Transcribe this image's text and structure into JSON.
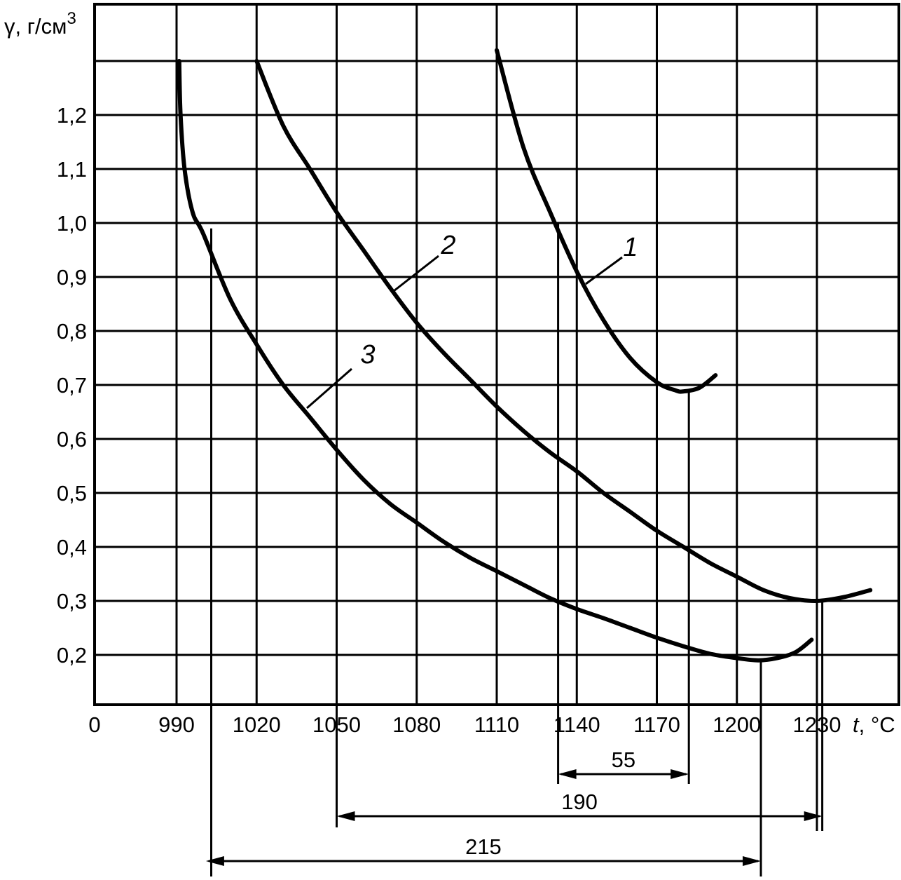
{
  "chart_data": {
    "type": "line",
    "ylabel": "γ, г/см",
    "ylabel_sup": "3",
    "xlabel_var": "t",
    "xlabel_unit": ", °C",
    "origin_label": "0",
    "x_ticks": [
      990,
      1020,
      1050,
      1080,
      1110,
      1140,
      1170,
      1200,
      1230
    ],
    "y_ticks": [
      "1,2",
      "1,1",
      "1,0",
      "0,9",
      "0,8",
      "0,7",
      "0,6",
      "0,5",
      "0,4",
      "0,3",
      "0,2"
    ],
    "xlim": [
      960,
      1250
    ],
    "ylim": [
      0.1,
      1.3
    ],
    "grid": true,
    "series": [
      {
        "name": "1",
        "values": [
          [
            1110,
            1.32
          ],
          [
            1120,
            1.14
          ],
          [
            1130,
            1.02
          ],
          [
            1140,
            0.91
          ],
          [
            1150,
            0.82
          ],
          [
            1160,
            0.75
          ],
          [
            1170,
            0.705
          ],
          [
            1177,
            0.69
          ],
          [
            1180,
            0.688
          ],
          [
            1186,
            0.695
          ],
          [
            1192,
            0.718
          ]
        ]
      },
      {
        "name": "2",
        "values": [
          [
            1020,
            1.3
          ],
          [
            1030,
            1.18
          ],
          [
            1040,
            1.1
          ],
          [
            1050,
            1.02
          ],
          [
            1060,
            0.95
          ],
          [
            1070,
            0.88
          ],
          [
            1080,
            0.815
          ],
          [
            1090,
            0.76
          ],
          [
            1100,
            0.71
          ],
          [
            1110,
            0.66
          ],
          [
            1120,
            0.615
          ],
          [
            1130,
            0.575
          ],
          [
            1140,
            0.54
          ],
          [
            1150,
            0.5
          ],
          [
            1160,
            0.465
          ],
          [
            1170,
            0.43
          ],
          [
            1180,
            0.4
          ],
          [
            1190,
            0.37
          ],
          [
            1200,
            0.345
          ],
          [
            1210,
            0.32
          ],
          [
            1220,
            0.305
          ],
          [
            1230,
            0.3
          ],
          [
            1240,
            0.307
          ],
          [
            1250,
            0.32
          ]
        ]
      },
      {
        "name": "3",
        "values": [
          [
            991,
            1.3
          ],
          [
            991.5,
            1.2
          ],
          [
            993,
            1.1
          ],
          [
            996,
            1.02
          ],
          [
            1000,
            0.98
          ],
          [
            1010,
            0.86
          ],
          [
            1020,
            0.775
          ],
          [
            1030,
            0.7
          ],
          [
            1040,
            0.64
          ],
          [
            1050,
            0.58
          ],
          [
            1060,
            0.525
          ],
          [
            1070,
            0.48
          ],
          [
            1080,
            0.445
          ],
          [
            1090,
            0.41
          ],
          [
            1100,
            0.38
          ],
          [
            1110,
            0.355
          ],
          [
            1120,
            0.33
          ],
          [
            1130,
            0.305
          ],
          [
            1140,
            0.285
          ],
          [
            1150,
            0.268
          ],
          [
            1160,
            0.25
          ],
          [
            1170,
            0.232
          ],
          [
            1180,
            0.216
          ],
          [
            1190,
            0.202
          ],
          [
            1200,
            0.194
          ],
          [
            1208,
            0.19
          ],
          [
            1215,
            0.194
          ],
          [
            1222,
            0.205
          ],
          [
            1228,
            0.228
          ]
        ]
      }
    ],
    "annotations": [
      {
        "text": "55",
        "from": 1133,
        "to": 1182
      },
      {
        "text": "190",
        "from": 1050,
        "to": 1232
      },
      {
        "text": "215",
        "from": 1001,
        "to": 1209
      }
    ]
  }
}
